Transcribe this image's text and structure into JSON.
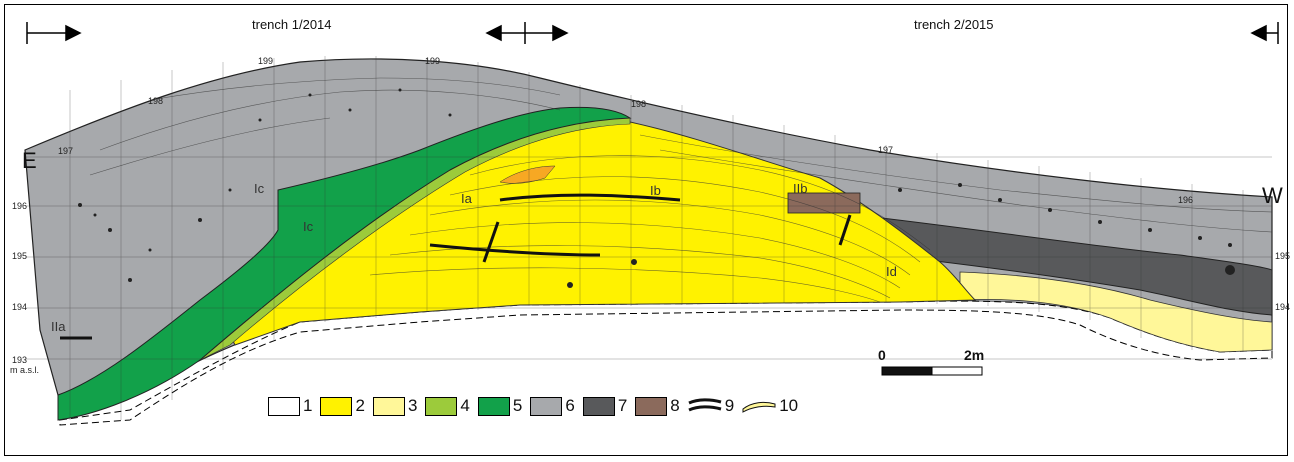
{
  "header": {
    "trench_left": "trench 1/2014",
    "trench_right": "trench 2/2015"
  },
  "orientation": {
    "east": "E",
    "west": "W"
  },
  "elevations": {
    "top_199_a": "199",
    "top_199_b": "199",
    "top_198_a": "198",
    "top_198_b": "198",
    "top_197_a": "197",
    "top_197_b": "197",
    "top_196_b": "196",
    "left_196": "196",
    "left_195": "195",
    "left_194": "194",
    "left_193": "193",
    "left_masl": "m a.s.l.",
    "right_195": "195",
    "right_194": "194"
  },
  "units": {
    "Ia": "Ia",
    "Ib": "Ib",
    "Ic_upper": "Ic",
    "Ic_lower": "Ic",
    "Id": "Id",
    "IIa": "IIa",
    "IIb": "IIb"
  },
  "scale": {
    "zero": "0",
    "end": "2m"
  },
  "legend": [
    {
      "num": "1",
      "color": "#ffffff"
    },
    {
      "num": "2",
      "color": "#fff200"
    },
    {
      "num": "3",
      "color": "#fff799"
    },
    {
      "num": "4",
      "color": "#9ccb3b"
    },
    {
      "num": "5",
      "color": "#12a14a"
    },
    {
      "num": "6",
      "color": "#a7a9ac"
    },
    {
      "num": "7",
      "color": "#58595b"
    },
    {
      "num": "8",
      "color": "#8b6a5c"
    },
    {
      "num": "9",
      "color": "pattern-lines"
    },
    {
      "num": "10",
      "color": "pattern-lens"
    }
  ],
  "colors": {
    "yellow": "#fff200",
    "light_yellow": "#fff799",
    "light_green": "#9ccb3b",
    "green": "#12a14a",
    "gray": "#a7a9ac",
    "dark_gray": "#58595b",
    "brown": "#8b6a5c",
    "orange": "#f7a823"
  }
}
